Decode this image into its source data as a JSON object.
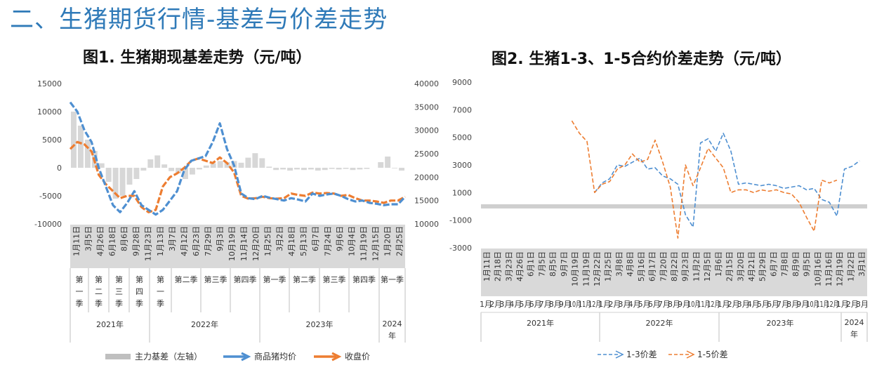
{
  "section_title": "二、生猪期货行情-基差与价差走势",
  "colors": {
    "blue": "#4e8fd1",
    "orange": "#ed7d31",
    "gray": "#c9c9c9",
    "title": "#2f7ab8"
  },
  "chart_data": [
    {
      "type": "line",
      "title": "图1. 生猪期现基差走势（元/吨）",
      "y_left_ticks": [
        "15000",
        "10000",
        "5000",
        "0",
        "-5000",
        "-10000"
      ],
      "y_right_ticks": [
        "40000",
        "35000",
        "30000",
        "25000",
        "20000",
        "15000",
        "10000"
      ],
      "ylim_left": [
        -10000,
        15000
      ],
      "ylim_right": [
        10000,
        40000
      ],
      "x_date_labels": [
        "1月11日",
        "3月5日",
        "4月26日",
        "6月18日",
        "8月6日",
        "9月28日",
        "11月23日",
        "1月13日",
        "3月7日",
        "4月12日",
        "6月23日",
        "7月29日",
        "9月3日",
        "10月19日",
        "11月14日",
        "12月20日",
        "1月25日",
        "3月2日",
        "4月18日",
        "5月13日",
        "6月7日",
        "7月24日",
        "9月6日",
        "10月4日",
        "11月19日",
        "12月15日",
        "1月20日",
        "2月25日"
      ],
      "quarter_labels": [
        "第一季",
        "第二季",
        "第三季",
        "第四季",
        "第一季",
        "第二季",
        "第三季",
        "第四季",
        "第一季",
        "第二季",
        "第三季",
        "第四季",
        "第一季"
      ],
      "year_labels": [
        "2021年",
        "2022年",
        "2023年",
        "2024年"
      ],
      "legend": [
        "主力基差（左轴）",
        "商品猪均价",
        "收盘价"
      ],
      "series": [
        {
          "name": "主力基差（左轴）",
          "axis": "left",
          "kind": "bar",
          "values": [
            10000,
            7500,
            5000,
            3000,
            800,
            -2500,
            -5500,
            -5000,
            -3000,
            -2000,
            -500,
            1500,
            2200,
            600,
            -600,
            -1000,
            -2000,
            -1200,
            -300,
            400,
            800,
            1200,
            1000,
            1200,
            900,
            1800,
            2600,
            1700,
            200,
            -400,
            -300,
            -500,
            -300,
            -400,
            -300,
            -500,
            -400,
            -200,
            -300,
            -200,
            -400,
            -300,
            -200,
            0,
            1000,
            2000,
            -100,
            -500
          ]
        },
        {
          "name": "商品猪均价",
          "axis": "right",
          "kind": "line",
          "values": [
            36000,
            34000,
            30000,
            27500,
            22000,
            18000,
            14000,
            12500,
            14500,
            17000,
            14000,
            13000,
            12000,
            13000,
            15000,
            17000,
            21500,
            23500,
            24000,
            24500,
            27500,
            31500,
            26000,
            22500,
            16500,
            15500,
            15300,
            16000,
            15600,
            15300,
            15000,
            15500,
            15200,
            14800,
            16500,
            16000,
            16300,
            16500,
            16000,
            15300,
            14800,
            15000,
            14500,
            14300,
            14000,
            14200,
            14200,
            15800
          ]
        },
        {
          "name": "收盘价",
          "axis": "right",
          "kind": "line",
          "values": [
            26000,
            27500,
            27000,
            25500,
            20500,
            18500,
            17000,
            15500,
            16000,
            16000,
            13600,
            12500,
            13000,
            18000,
            20000,
            20800,
            22000,
            23500,
            24000,
            23500,
            23000,
            24200,
            23000,
            21000,
            16000,
            15400,
            15500,
            15800,
            15500,
            15400,
            15500,
            16500,
            16200,
            16000,
            16700,
            16500,
            16600,
            16500,
            16000,
            16200,
            15500,
            15000,
            15000,
            14800,
            14500,
            15000,
            15000,
            15800
          ]
        }
      ]
    },
    {
      "type": "line",
      "title": "图2. 生猪1-3、1-5合约价差走势（元/吨）",
      "y_ticks": [
        "9000",
        "7000",
        "5000",
        "3000",
        "1000",
        "-1000",
        "-3000"
      ],
      "ylim": [
        -3000,
        9000
      ],
      "x_date_labels": [
        "1月11日",
        "2月18日",
        "3月23日",
        "4月26日",
        "6月1日",
        "7月5日",
        "8月5日",
        "9月7日",
        "10月19日",
        "11月19日",
        "12月22日",
        "1月25日",
        "3月8日",
        "4月8日",
        "5月16日",
        "6月17日",
        "7月20日",
        "8月22日",
        "9月23日",
        "11月2日",
        "12月5日",
        "1月6日",
        "2月15日",
        "3月20日",
        "4月21日",
        "5月29日",
        "6月7日",
        "7月8日",
        "8月9日",
        "9月5日",
        "10月16日",
        "11月16日",
        "12月19日",
        "1月22日",
        "3月1日"
      ],
      "month_labels": [
        "1月",
        "2月",
        "3月",
        "4月",
        "5月",
        "6月",
        "7月",
        "8月",
        "9月",
        "10月",
        "11月",
        "12月",
        "1月",
        "2月",
        "3月",
        "4月",
        "5月",
        "6月",
        "7月",
        "8月",
        "9月",
        "10月",
        "11月",
        "12月",
        "1月",
        "2月",
        "3月",
        "4月",
        "5月",
        "6月",
        "7月",
        "8月",
        "9月",
        "10月",
        "11月",
        "12月",
        "1月",
        "2月",
        "3月"
      ],
      "year_labels": [
        "2021年",
        "2022年",
        "2023年",
        "2024年"
      ],
      "legend": [
        "1-3价差",
        "1-5价差"
      ],
      "zero_band": 0,
      "series": [
        {
          "name": "1-3价差",
          "start": 15,
          "values": [
            1000,
            1700,
            2000,
            3000,
            2900,
            3200,
            3500,
            2700,
            2800,
            2200,
            2000,
            1600,
            -600,
            -1500,
            4600,
            4900,
            4000,
            5300,
            4000,
            1600,
            1700,
            1600,
            1500,
            1600,
            1500,
            1300,
            1400,
            1500,
            1200,
            1300,
            500,
            300,
            -700,
            2700,
            2900,
            3300
          ]
        },
        {
          "name": "1-5价差",
          "start": 12,
          "values": [
            6200,
            5300,
            4700,
            1000,
            1600,
            1800,
            2700,
            3000,
            3800,
            3200,
            3400,
            4800,
            3200,
            1400,
            -2300,
            3000,
            1500,
            2800,
            4200,
            3500,
            2800,
            1000,
            1200,
            1200,
            1000,
            1200,
            1100,
            1200,
            1000,
            900,
            300,
            -800,
            -1800,
            1900,
            1700,
            1900
          ]
        }
      ]
    }
  ]
}
